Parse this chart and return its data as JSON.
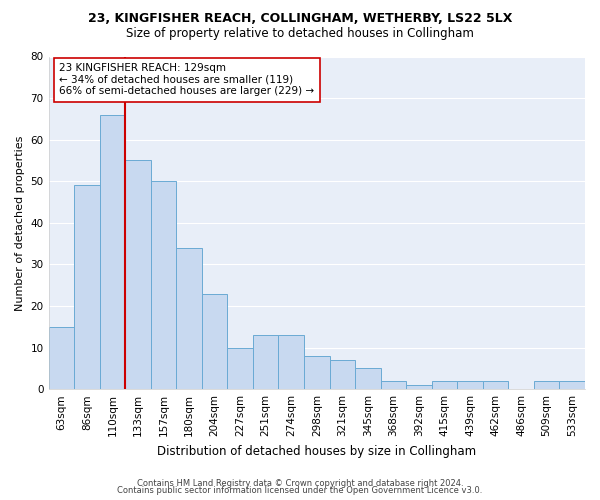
{
  "title1": "23, KINGFISHER REACH, COLLINGHAM, WETHERBY, LS22 5LX",
  "title2": "Size of property relative to detached houses in Collingham",
  "xlabel": "Distribution of detached houses by size in Collingham",
  "ylabel": "Number of detached properties",
  "categories": [
    "63sqm",
    "86sqm",
    "110sqm",
    "133sqm",
    "157sqm",
    "180sqm",
    "204sqm",
    "227sqm",
    "251sqm",
    "274sqm",
    "298sqm",
    "321sqm",
    "345sqm",
    "368sqm",
    "392sqm",
    "415sqm",
    "439sqm",
    "462sqm",
    "486sqm",
    "509sqm",
    "533sqm"
  ],
  "values": [
    15,
    49,
    66,
    55,
    50,
    34,
    23,
    10,
    13,
    13,
    8,
    7,
    5,
    2,
    1,
    2,
    2,
    2,
    0,
    2,
    2
  ],
  "bar_color": "#c8d9f0",
  "bar_edge_color": "#6aaad4",
  "bar_width": 1.0,
  "vline_x": 2.5,
  "vline_color": "#cc0000",
  "annotation_text": "23 KINGFISHER REACH: 129sqm\n← 34% of detached houses are smaller (119)\n66% of semi-detached houses are larger (229) →",
  "annotation_box_color": "#ffffff",
  "annotation_box_edge": "#cc0000",
  "ylim": [
    0,
    80
  ],
  "yticks": [
    0,
    10,
    20,
    30,
    40,
    50,
    60,
    70,
    80
  ],
  "footer1": "Contains HM Land Registry data © Crown copyright and database right 2024.",
  "footer2": "Contains public sector information licensed under the Open Government Licence v3.0.",
  "bg_color": "#ffffff",
  "plot_bg_color": "#e8eef8",
  "grid_color": "#ffffff",
  "title1_fontsize": 9.0,
  "title2_fontsize": 8.5,
  "xlabel_fontsize": 8.5,
  "ylabel_fontsize": 8.0,
  "tick_fontsize": 7.5,
  "footer_fontsize": 6.0
}
